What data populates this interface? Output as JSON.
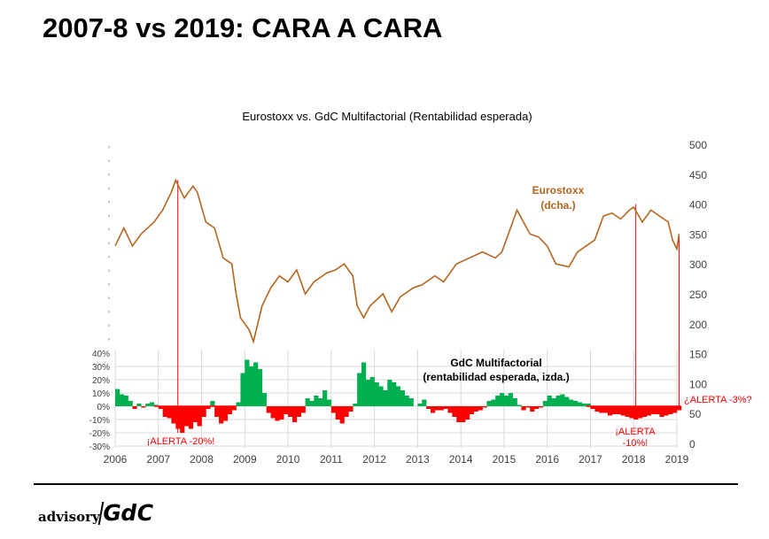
{
  "page": {
    "title": "2007-8 vs 2019: CARA A CARA"
  },
  "logo": {
    "text1": "advisory",
    "text2": "GdC"
  },
  "chart_data": {
    "type": "bar+line",
    "title": "Eurostoxx vs. GdC Multifactorial (Rentabilidad esperada)",
    "x_ticks": [
      "2006",
      "2007",
      "2008",
      "2009",
      "2010",
      "2011",
      "2012",
      "2013",
      "2014",
      "2015",
      "2016",
      "2017",
      "2018",
      "2019"
    ],
    "xlim": [
      2006,
      2019
    ],
    "left_axis": {
      "ticks": [
        "40%",
        "30%",
        "20%",
        "10%",
        "0%",
        "-10%",
        "-20%",
        "-30%"
      ],
      "values": [
        40,
        30,
        20,
        10,
        0,
        -10,
        -20,
        -30
      ],
      "ylim": [
        -30,
        40
      ]
    },
    "right_axis": {
      "ticks": [
        "500",
        "450",
        "400",
        "350",
        "300",
        "250",
        "200",
        "150",
        "100",
        "50",
        "0"
      ],
      "values": [
        500,
        450,
        400,
        350,
        300,
        250,
        200,
        150,
        100,
        50,
        0
      ],
      "ylim": [
        0,
        500
      ]
    },
    "series": [
      {
        "name": "Eurostoxx",
        "label": "Eurostoxx",
        "label2": "(dcha.)",
        "type": "line",
        "axis": "right",
        "color": "#b5651d",
        "x": [
          2006.0,
          2006.2,
          2006.4,
          2006.6,
          2006.9,
          2007.1,
          2007.3,
          2007.4,
          2007.6,
          2007.8,
          2007.9,
          2008.1,
          2008.3,
          2008.5,
          2008.7,
          2008.8,
          2008.9,
          2009.1,
          2009.2,
          2009.4,
          2009.6,
          2009.8,
          2010.0,
          2010.2,
          2010.4,
          2010.6,
          2010.9,
          2011.1,
          2011.3,
          2011.5,
          2011.6,
          2011.75,
          2011.9,
          2012.2,
          2012.4,
          2012.6,
          2012.9,
          2013.1,
          2013.4,
          2013.6,
          2013.9,
          2014.2,
          2014.5,
          2014.8,
          2014.95,
          2015.2,
          2015.3,
          2015.6,
          2015.8,
          2016.0,
          2016.2,
          2016.5,
          2016.7,
          2016.9,
          2017.1,
          2017.3,
          2017.5,
          2017.7,
          2017.9,
          2018.0,
          2018.2,
          2018.4,
          2018.6,
          2018.8,
          2018.9,
          2019.0,
          2019.05
        ],
        "y": [
          330,
          360,
          330,
          350,
          370,
          390,
          420,
          440,
          410,
          430,
          420,
          370,
          360,
          310,
          300,
          250,
          210,
          190,
          170,
          230,
          260,
          280,
          270,
          290,
          250,
          270,
          285,
          290,
          300,
          280,
          230,
          210,
          230,
          250,
          220,
          245,
          260,
          265,
          280,
          270,
          300,
          310,
          320,
          310,
          320,
          370,
          390,
          350,
          345,
          330,
          300,
          295,
          320,
          330,
          340,
          380,
          385,
          375,
          390,
          395,
          370,
          390,
          380,
          370,
          340,
          325,
          350
        ]
      },
      {
        "name": "GdC Multifactorial",
        "label": "GdC Multifactorial",
        "label2": "(rentabilidad esperada, izda.)",
        "type": "bar",
        "axis": "left",
        "pos_color": "#00b050",
        "neg_color": "#ff0000",
        "x_start": 2006.0,
        "x_step": 0.1,
        "values": [
          13,
          9,
          8,
          4,
          -2,
          2,
          -1,
          2,
          3,
          1,
          -2,
          -8,
          -9,
          -13,
          -17,
          -20,
          -15,
          -17,
          -12,
          -15,
          -8,
          -2,
          4,
          -8,
          -13,
          -11,
          -6,
          -3,
          3,
          25,
          35,
          30,
          33,
          28,
          10,
          -5,
          -9,
          -11,
          -10,
          -6,
          -8,
          -12,
          -8,
          -5,
          6,
          4,
          8,
          6,
          12,
          5,
          -5,
          -10,
          -13,
          -8,
          -4,
          2,
          25,
          33,
          20,
          22,
          18,
          15,
          12,
          20,
          18,
          15,
          12,
          8,
          6,
          0,
          2,
          5,
          -2,
          -5,
          -3,
          -3,
          -2,
          -5,
          -8,
          -12,
          -12,
          -10,
          -6,
          -4,
          -3,
          -1,
          4,
          5,
          8,
          10,
          8,
          10,
          6,
          1,
          -3,
          -1,
          -4,
          -2,
          -1,
          4,
          8,
          6,
          8,
          9,
          7,
          5,
          4,
          3,
          2,
          2,
          -2,
          -4,
          -5,
          -5,
          -7,
          -6,
          -6,
          -7,
          -8,
          -9,
          -10,
          -9,
          -8,
          -7,
          -6,
          -6,
          -8,
          -7,
          -6,
          -5,
          -3
        ]
      }
    ],
    "annotations": [
      {
        "text": "¡ALERTA -20%!",
        "x": 2007.45
      },
      {
        "text": "¡ALERTA",
        "text2": "-10%!",
        "x": 2018.05
      },
      {
        "text": "¿ALERTA -3%?",
        "x": 2019.05
      }
    ],
    "alert_lines_x": [
      2007.45,
      2018.05,
      2019.05
    ],
    "colors": {
      "alert": "#ff0000",
      "grid": "#d9d9d9",
      "text": "#404040"
    },
    "grid": true
  }
}
